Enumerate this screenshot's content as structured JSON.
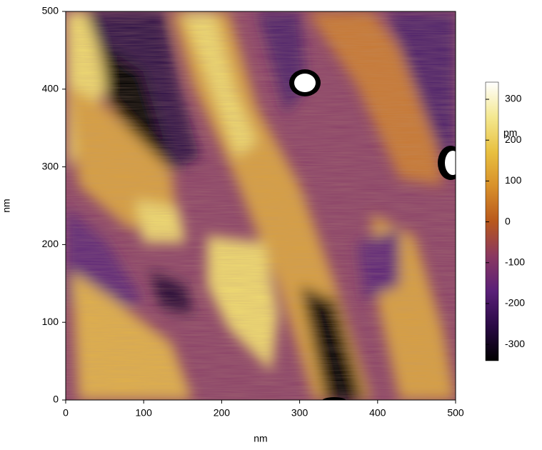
{
  "chart_data": {
    "type": "image",
    "xlabel": "nm",
    "ylabel": "nm",
    "xlim": [
      0,
      500
    ],
    "ylim": [
      0,
      500
    ],
    "xticks": [
      0,
      100,
      200,
      300,
      400,
      500
    ],
    "yticks": [
      0,
      100,
      200,
      300,
      400,
      500
    ],
    "colorbar": {
      "label": "pm",
      "clim": [
        -340,
        342
      ],
      "ticks": [
        -300,
        -200,
        -100,
        0,
        100,
        200,
        300
      ],
      "colormap": [
        "#000000",
        "#2a0a45",
        "#5a2078",
        "#8a3860",
        "#b8581c",
        "#d8902a",
        "#e8c040",
        "#f4e890",
        "#ffffff"
      ]
    }
  }
}
